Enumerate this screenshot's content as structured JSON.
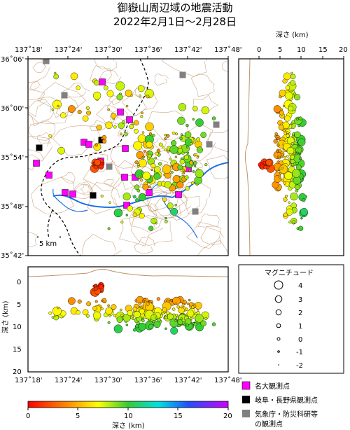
{
  "title": {
    "line1": "御嶽山周辺域の地震活動",
    "line2": "2022年2月1日～2月28日"
  },
  "map": {
    "lon_ticks": [
      "137˚18'",
      "137˚24'",
      "137˚30'",
      "137˚36'",
      "137˚42'",
      "137˚48'"
    ],
    "lat_ticks": [
      "36˚06'",
      "36˚00'",
      "35˚54'",
      "35˚48'",
      "35˚42'"
    ],
    "scale_label": "5 km"
  },
  "depth_ns": {
    "axis_label": "深さ (km)",
    "ticks": [
      "0",
      "5",
      "10",
      "15",
      "20"
    ]
  },
  "depth_ew": {
    "axis_label": "深さ (km)",
    "ticks": [
      "0",
      "5",
      "10",
      "15",
      "20"
    ],
    "lon_ticks": [
      "137˚18'",
      "137˚24'",
      "137˚30'",
      "137˚36'",
      "137˚42'",
      "137˚48'"
    ]
  },
  "magnitude_legend": {
    "title": "マグニチュード",
    "labels": [
      "4",
      "3",
      "2",
      "1",
      "0",
      "-1",
      "-2"
    ]
  },
  "station_legend": [
    {
      "label": "名大観測点",
      "color": "#ff00ff"
    },
    {
      "label": "岐阜・長野県観測点",
      "color": "#000000"
    },
    {
      "label": "気象庁・防災科研等",
      "label2": "の観測点",
      "color": "#808080"
    }
  ],
  "colorbar": {
    "axis_label": "深さ (km)",
    "ticks": [
      "0",
      "5",
      "10",
      "15",
      "20"
    ]
  },
  "colors": {
    "river": "#1e6ee6",
    "contour": "#c0946a",
    "frame": "#000000"
  }
}
